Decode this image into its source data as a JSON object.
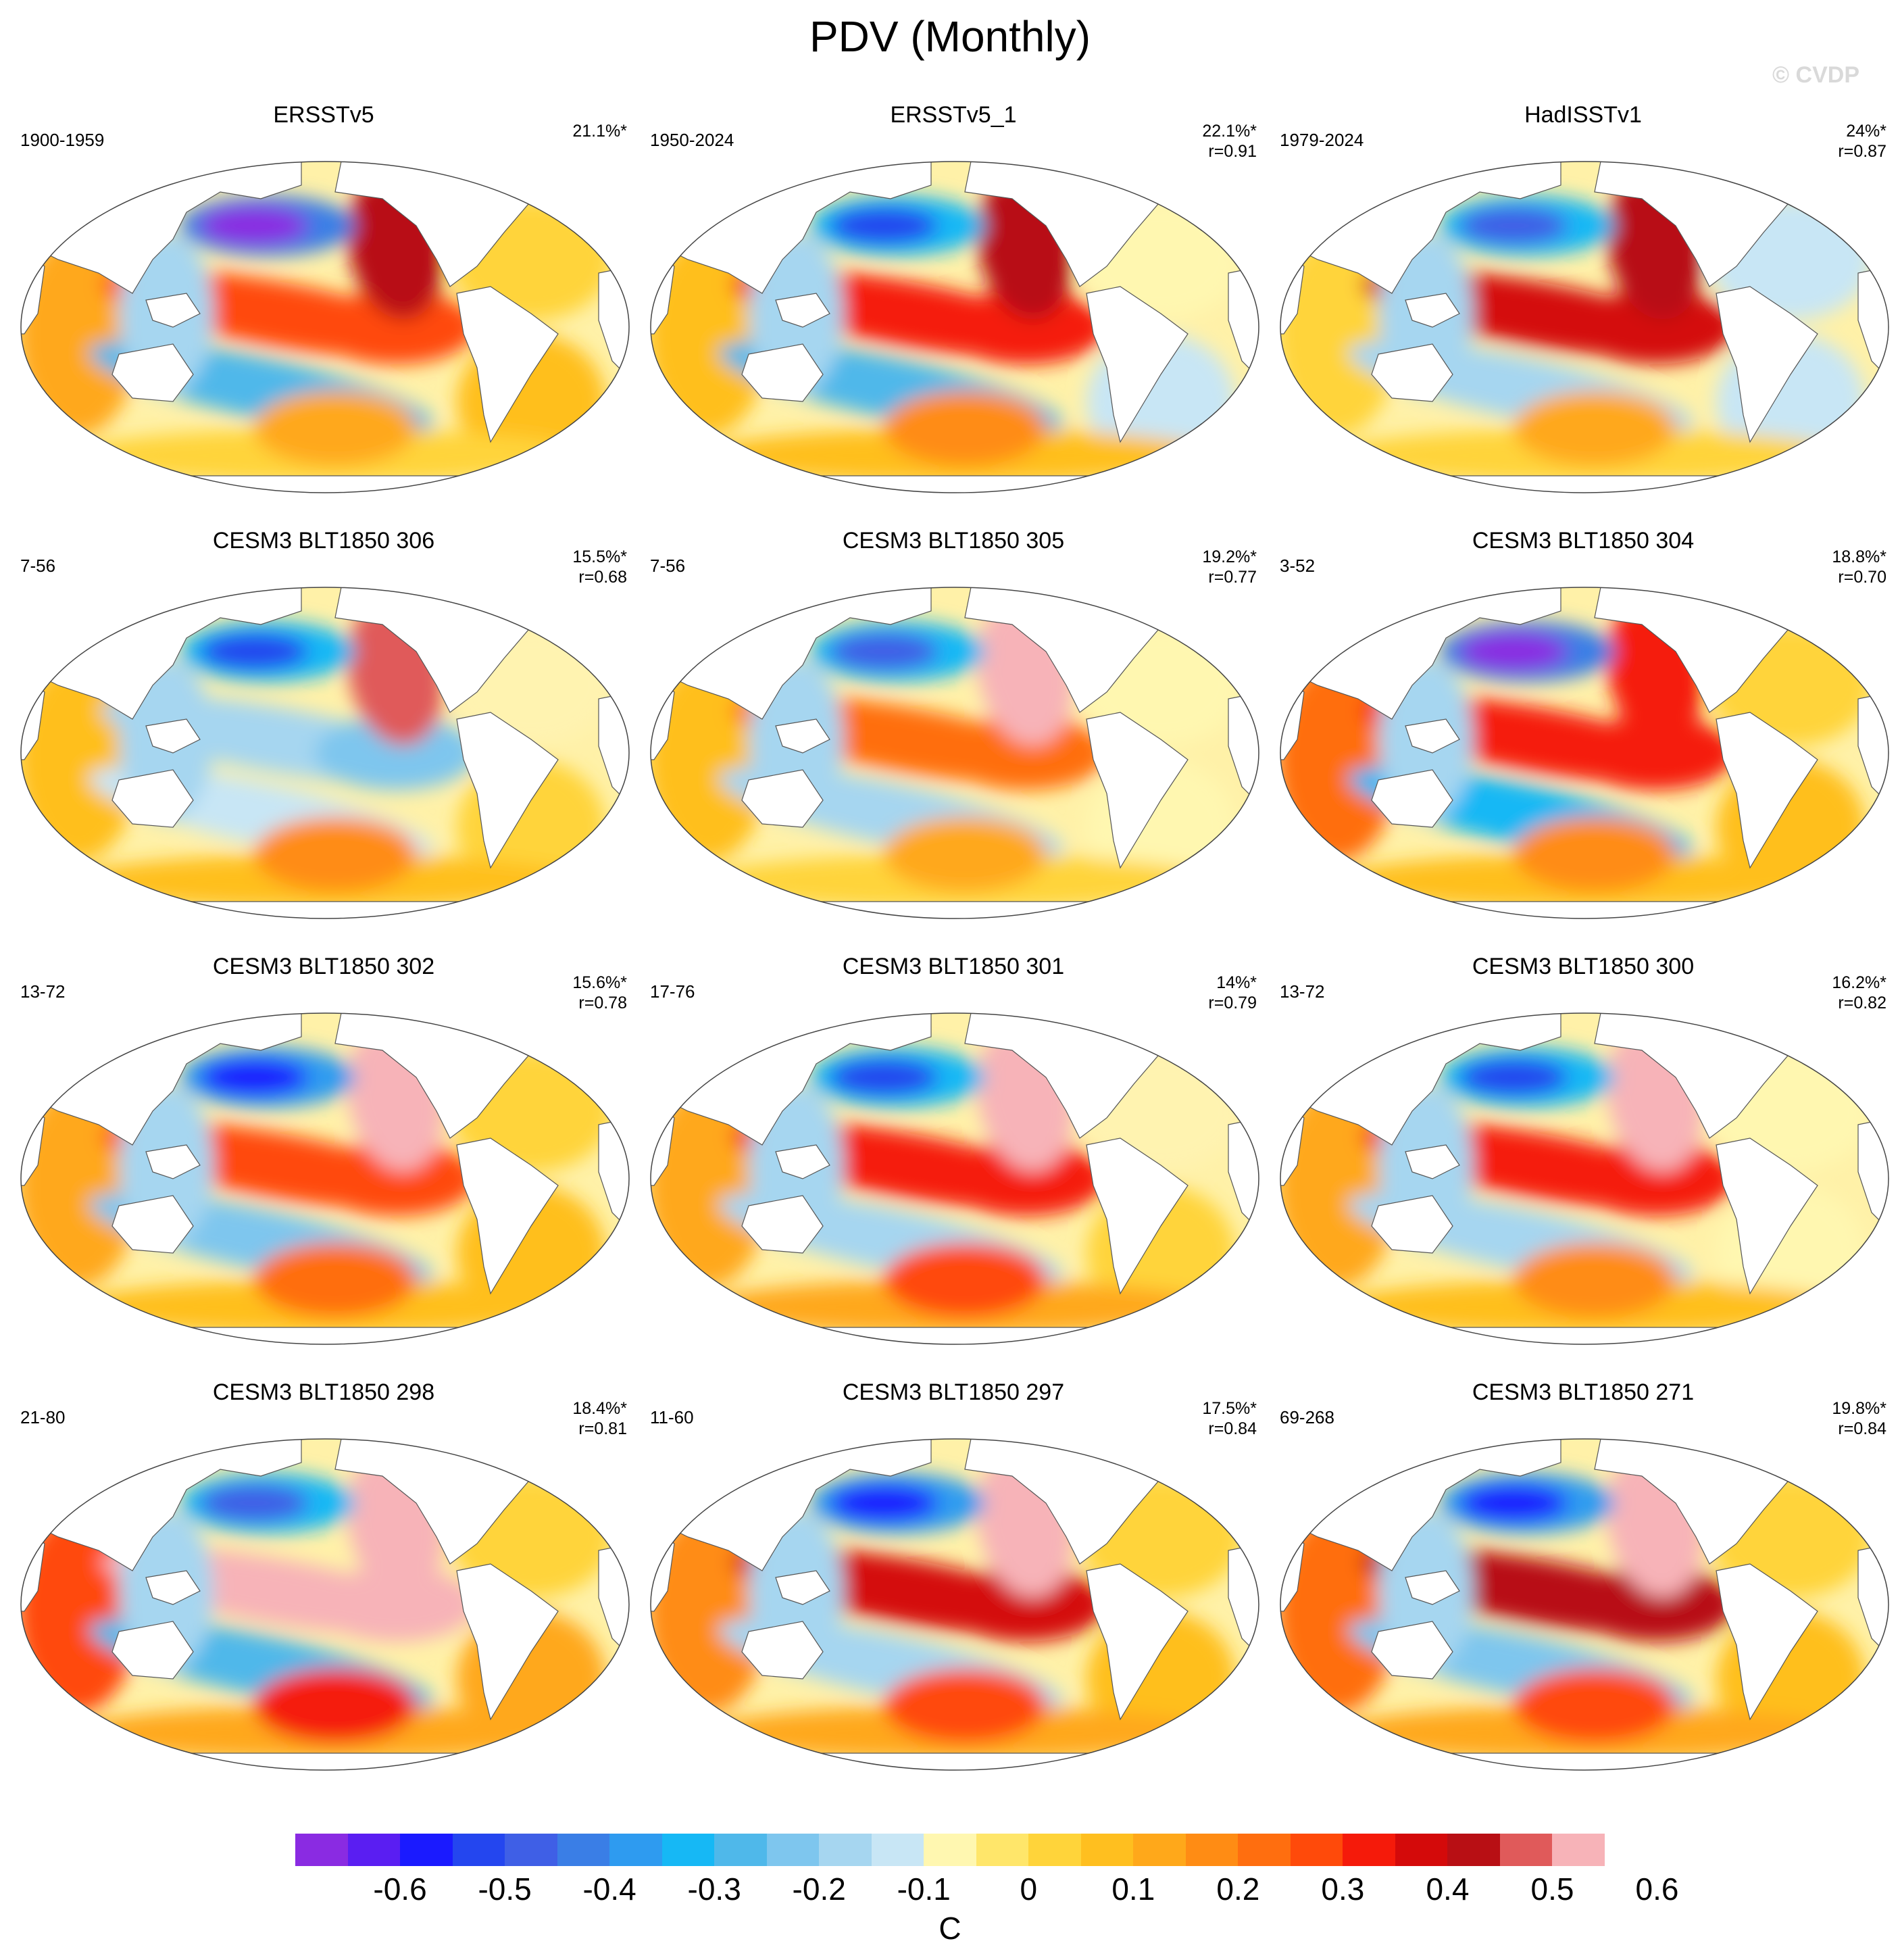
{
  "figure": {
    "title": "PDV (Monthly)",
    "watermark": "© CVDP"
  },
  "panels": [
    {
      "title": "ERSSTv5",
      "years": "1900-1959",
      "variance": "21.1%*",
      "corr": "",
      "pattern": {
        "np": -0.62,
        "ne": 0.45,
        "eq": 0.3,
        "sp": -0.25,
        "sa": 0.15,
        "io": 0.15,
        "at": 0.12
      }
    },
    {
      "title": "ERSSTv5_1",
      "years": "1950-2024",
      "variance": "22.1%*",
      "corr": "r=0.91",
      "pattern": {
        "np": -0.5,
        "ne": 0.45,
        "eq": 0.35,
        "sp": -0.25,
        "sa": 0.2,
        "io": 0.12,
        "at": -0.08
      }
    },
    {
      "title": "HadISSTv1",
      "years": "1979-2024",
      "variance": "24%*",
      "corr": "r=0.87",
      "pattern": {
        "np": -0.45,
        "ne": 0.45,
        "eq": 0.4,
        "sp": -0.15,
        "sa": 0.15,
        "io": 0.08,
        "at": -0.1
      }
    },
    {
      "title": "CESM3 BLT1850 306",
      "years": "7-56",
      "variance": "15.5%*",
      "corr": "r=0.68",
      "pattern": {
        "np": -0.5,
        "ne": 0.5,
        "eq": -0.15,
        "sp": -0.1,
        "sa": 0.2,
        "io": 0.1,
        "at": 0.05
      }
    },
    {
      "title": "CESM3 BLT1850 305",
      "years": "7-56",
      "variance": "19.2%*",
      "corr": "r=0.77",
      "pattern": {
        "np": -0.45,
        "ne": 0.65,
        "eq": 0.25,
        "sp": -0.15,
        "sa": 0.15,
        "io": 0.1,
        "at": -0.05
      }
    },
    {
      "title": "CESM3 BLT1850 304",
      "years": "3-52",
      "variance": "18.8%*",
      "corr": "r=0.70",
      "pattern": {
        "np": -0.62,
        "ne": 0.35,
        "eq": 0.35,
        "sp": -0.3,
        "sa": 0.2,
        "io": 0.25,
        "at": 0.12
      }
    },
    {
      "title": "CESM3 BLT1850 302",
      "years": "13-72",
      "variance": "15.6%*",
      "corr": "r=0.78",
      "pattern": {
        "np": -0.55,
        "ne": 0.55,
        "eq": 0.3,
        "sp": -0.2,
        "sa": 0.25,
        "io": 0.15,
        "at": 0.1
      }
    },
    {
      "title": "CESM3 BLT1850 301",
      "years": "17-76",
      "variance": "14%*",
      "corr": "r=0.79",
      "pattern": {
        "np": -0.5,
        "ne": 0.55,
        "eq": 0.35,
        "sp": -0.15,
        "sa": 0.3,
        "io": 0.15,
        "at": 0.08
      }
    },
    {
      "title": "CESM3 BLT1850 300",
      "years": "13-72",
      "variance": "16.2%*",
      "corr": "r=0.82",
      "pattern": {
        "np": -0.5,
        "ne": 0.55,
        "eq": 0.35,
        "sp": -0.15,
        "sa": 0.2,
        "io": 0.15,
        "at": -0.05
      }
    },
    {
      "title": "CESM3 BLT1850 298",
      "years": "21-80",
      "variance": "18.4%*",
      "corr": "r=0.81",
      "pattern": {
        "np": -0.45,
        "ne": 0.65,
        "eq": 0.6,
        "sp": -0.25,
        "sa": 0.35,
        "io": 0.3,
        "at": 0.15
      }
    },
    {
      "title": "CESM3 BLT1850 297",
      "years": "11-60",
      "variance": "17.5%*",
      "corr": "r=0.84",
      "pattern": {
        "np": -0.55,
        "ne": 0.6,
        "eq": 0.4,
        "sp": -0.15,
        "sa": 0.3,
        "io": 0.2,
        "at": 0.12
      }
    },
    {
      "title": "CESM3 BLT1850 271",
      "years": "69-268",
      "variance": "19.8%*",
      "corr": "r=0.84",
      "pattern": {
        "np": -0.55,
        "ne": 0.65,
        "eq": 0.45,
        "sp": -0.2,
        "sa": 0.3,
        "io": 0.25,
        "at": 0.12
      }
    }
  ],
  "colorbar": {
    "unit": "C",
    "tick_labels": [
      "-0.6",
      "-0.5",
      "-0.4",
      "-0.3",
      "-0.2",
      "-0.1",
      "0",
      "0.1",
      "0.2",
      "0.3",
      "0.4",
      "0.5",
      "0.6"
    ],
    "colors": [
      "#8a2be2",
      "#5a1ef2",
      "#1a1aff",
      "#2446ef",
      "#3f5fe6",
      "#3a7ee6",
      "#2e9bf0",
      "#16b8f5",
      "#4fb8ea",
      "#7ec6ee",
      "#a6d6f0",
      "#c8e6f5",
      "#fff7b0",
      "#ffe66a",
      "#ffd43a",
      "#ffbf1f",
      "#ffa81a",
      "#ff8c14",
      "#ff6e0f",
      "#ff4a0a",
      "#f51a0a",
      "#d40a0a",
      "#b80f14",
      "#e05a5a",
      "#f7b3b8"
    ],
    "land_color": "#ffffff",
    "ocean_neutral": "#fff3b0"
  }
}
